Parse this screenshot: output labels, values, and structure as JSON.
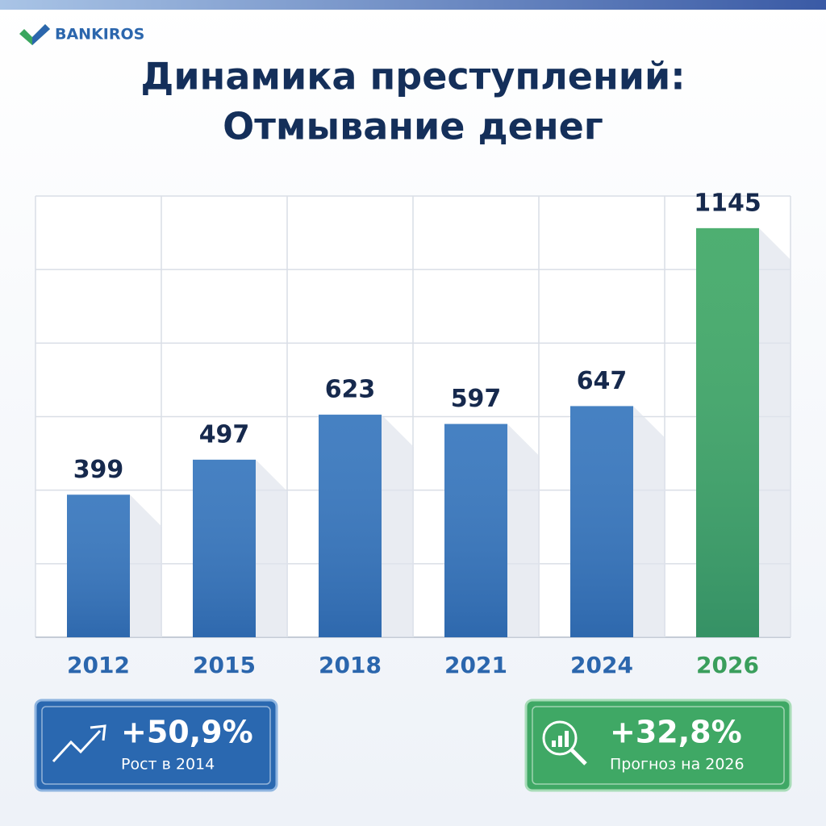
{
  "brand": "BANKIROS",
  "chart_data": {
    "type": "bar",
    "title": [
      "Динамика преступлений:",
      "Отмывание денег"
    ],
    "categories": [
      "2012",
      "2015",
      "2018",
      "2021",
      "2024",
      "2026"
    ],
    "values": [
      399,
      497,
      623,
      597,
      647,
      1145
    ],
    "colors": [
      "#3676bd",
      "#3676bd",
      "#3676bd",
      "#3676bd",
      "#3676bd",
      "#3fa865"
    ],
    "label_colors": [
      "#2b66ad",
      "#2b66ad",
      "#2b66ad",
      "#2b66ad",
      "#2b66ad",
      "#3a9e5c"
    ],
    "ylim": [
      0,
      1235
    ],
    "grid": true
  },
  "cards": [
    {
      "value": "+50,9%",
      "label": "Рост в 2014"
    },
    {
      "value": "+32,8%",
      "label": "Прогноз на 2026"
    }
  ]
}
